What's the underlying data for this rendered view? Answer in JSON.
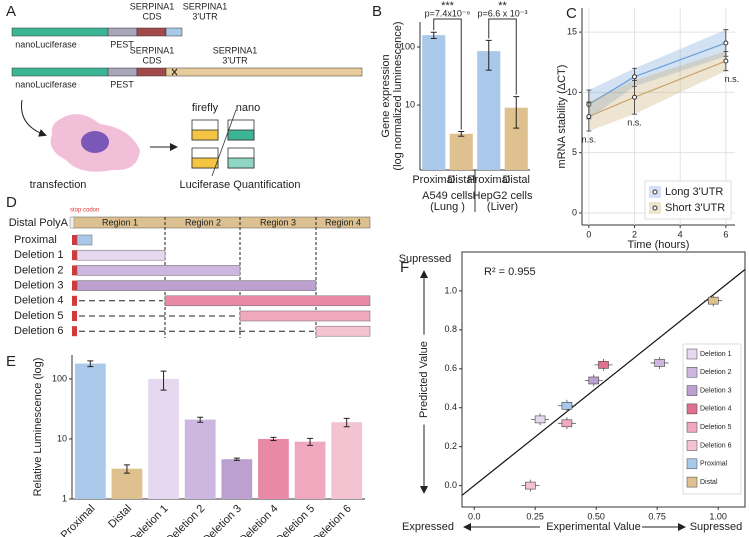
{
  "panel_A": {
    "label": "A",
    "construct_1": {
      "cds": [
        "SERPINA1",
        "CDS"
      ],
      "utr": [
        "SERPINA1",
        "3'UTR"
      ],
      "luciferase": "nanoLuciferase",
      "pest": "PEST"
    },
    "construct_2": {
      "cds": [
        "SERPINA1",
        "CDS"
      ],
      "utr": [
        "SERPINA1",
        "3'UTR"
      ],
      "luciferase": "nanoLuciferase",
      "pest": "PEST"
    },
    "tubes": [
      "firefly",
      "nano"
    ],
    "steps": [
      "transfection",
      "Luciferase Quantification"
    ]
  },
  "panel_D": {
    "label": "D",
    "stop_label": "stop codon",
    "header": "Distal PolyA",
    "regions": [
      "Region 1",
      "Region 2",
      "Region 3",
      "Region 4"
    ],
    "rows": [
      "Proximal",
      "Deletion 1",
      "Deletion 2",
      "Deletion 3",
      "Deletion 4",
      "Deletion 5",
      "Deletion 6"
    ]
  },
  "chart_data": [
    {
      "label": "B",
      "type": "bar",
      "log": true,
      "categories": [
        "Proximal",
        "Distal",
        "Proximal",
        "Distal"
      ],
      "groups": [
        [
          "A549 cells",
          "(Lung )"
        ],
        [
          "HepG2 cells",
          "(Liver)"
        ]
      ],
      "values": [
        160,
        3.2,
        85,
        9
      ],
      "errors": [
        20,
        0.3,
        45,
        5
      ],
      "colors": [
        "#a9c8ea",
        "#dfc08f",
        "#a9c8ea",
        "#dfc08f"
      ],
      "ylabel": [
        "Gene expression",
        "(log normalized luminescence)"
      ],
      "ylim": [
        0.76,
        270
      ],
      "yticks": [
        10,
        100
      ],
      "annotations": [
        "***",
        "p=7.4x10⁻⁶",
        "**",
        "p=6.6 x 10⁻³"
      ]
    },
    {
      "label": "C",
      "type": "line",
      "x": [
        0,
        2,
        6
      ],
      "xlim": [
        -0.3,
        6.4
      ],
      "xticks": [
        0,
        2,
        4,
        6
      ],
      "ylim": [
        -1,
        17
      ],
      "yticks": [
        0,
        5,
        10,
        15
      ],
      "grid": true,
      "xlabel": "Time (hours)",
      "ylabel": "mRNA stability (ΔCT)",
      "legend": "bottom right",
      "series": [
        {
          "name": "Long 3'UTR",
          "color": "#6a9fd8",
          "values": [
            9,
            11.3,
            14.1
          ],
          "lower": [
            7.8,
            10.5,
            13
          ],
          "upper": [
            10.2,
            12,
            15.2
          ]
        },
        {
          "name": "Short 3'UTR",
          "color": "#c8a46a",
          "values": [
            8,
            9.6,
            12.6
          ],
          "lower": [
            6.8,
            8.2,
            11.8
          ],
          "upper": [
            9.2,
            11,
            13.4
          ]
        }
      ],
      "annotations": [
        "n.s.",
        "n.s.",
        "n.s."
      ]
    },
    {
      "label": "E",
      "type": "bar",
      "log": true,
      "rotate_labels": true,
      "categories": [
        "Proximal",
        "Distal",
        "Deletion 1",
        "Deletion 2",
        "Deletion 3",
        "Deletion 4",
        "Deletion 5",
        "Deletion 6"
      ],
      "values": [
        180,
        3.2,
        100,
        21,
        4.6,
        10,
        9,
        19
      ],
      "errors": [
        20,
        0.5,
        35,
        2,
        0.2,
        0.6,
        1.2,
        3
      ],
      "colors": [
        "#a9c8ea",
        "#dfc08f",
        "#e6d8ee",
        "#cdb6df",
        "#bca0d0",
        "#e88aa6",
        "#f0a8bf",
        "#f4c3d1"
      ],
      "ylabel": "Relative Luminescence (log)",
      "ylim": [
        1,
        250
      ],
      "yticks": [
        1,
        10,
        100
      ]
    },
    {
      "label": "F",
      "type": "scatter",
      "points": [
        {
          "name": "Deletion 1",
          "color": "#e6d8ee",
          "x": 0.27,
          "y": 0.34
        },
        {
          "name": "Deletion 2",
          "color": "#cdb6df",
          "x": 0.76,
          "y": 0.63
        },
        {
          "name": "Deletion 3",
          "color": "#bca0d0",
          "x": 0.49,
          "y": 0.54
        },
        {
          "name": "Deletion 4",
          "color": "#e0708f",
          "x": 0.53,
          "y": 0.62
        },
        {
          "name": "Deletion 5",
          "color": "#f0a8bf",
          "x": 0.38,
          "y": 0.32
        },
        {
          "name": "Deletion 6",
          "color": "#f4c3d1",
          "x": 0.23,
          "y": 0
        },
        {
          "name": "Proximal",
          "color": "#a9c8ea",
          "x": 0.38,
          "y": 0.41
        },
        {
          "name": "Distal",
          "color": "#dfc08f",
          "x": 0.98,
          "y": 0.95
        }
      ],
      "xlim": [
        -0.05,
        1.11
      ],
      "ylim": [
        -0.11,
        1.2
      ],
      "xticks": [
        {
          "value": 0,
          "label": "0.0"
        },
        {
          "value": 0.25,
          "label": "0.25"
        },
        {
          "value": 0.5,
          "label": "0.50"
        },
        {
          "value": 0.75,
          "label": "0.75"
        },
        {
          "value": 1,
          "label": "1.00"
        }
      ],
      "yticks": [
        {
          "value": 0,
          "label": "0.0"
        },
        {
          "value": 0.2,
          "label": "0.2"
        },
        {
          "value": 0.4,
          "label": "0.4"
        },
        {
          "value": 0.6,
          "label": "0.6"
        },
        {
          "value": 0.8,
          "label": "0.8"
        },
        {
          "value": 1,
          "label": "1.0"
        }
      ],
      "xlabel": "Experimental Value",
      "ylabel": "Predicted Value",
      "x_ends": [
        "Expressed",
        "Supressed"
      ],
      "y_end": "Supressed",
      "annotation": "R² = 0.955",
      "legend": "right"
    }
  ]
}
